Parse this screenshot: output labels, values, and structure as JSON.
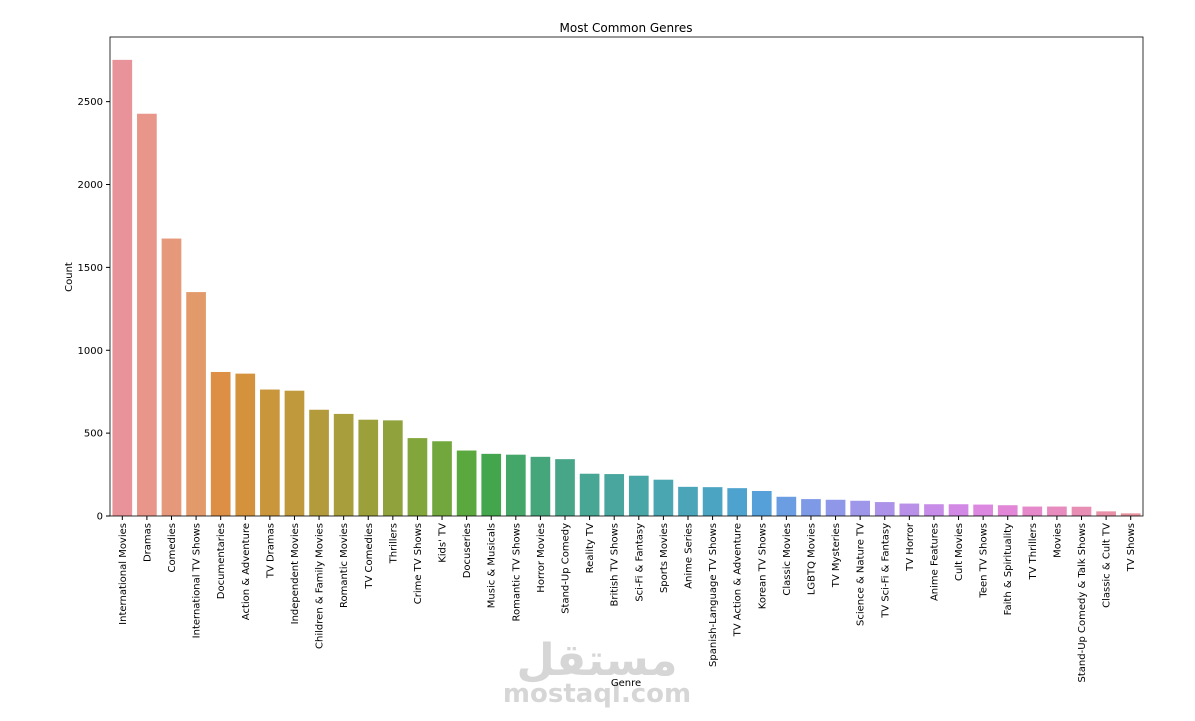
{
  "chart_data": {
    "type": "bar",
    "title": "Most Common Genres",
    "x_label": "Genre",
    "y_label": "Count",
    "categories": [
      "International Movies",
      "Dramas",
      "Comedies",
      "International TV Shows",
      "Documentaries",
      "Action & Adventure",
      "TV Dramas",
      "Independent Movies",
      "Children & Family Movies",
      "Romantic Movies",
      "TV Comedies",
      "Thrillers",
      "Crime TV Shows",
      "Kids' TV",
      "Docuseries",
      "Music & Musicals",
      "Romantic TV Shows",
      "Horror Movies",
      "Stand-Up Comedy",
      "Reality TV",
      "British TV Shows",
      "Sci-Fi & Fantasy",
      "Sports Movies",
      "Anime Series",
      "Spanish-Language TV Shows",
      "TV Action & Adventure",
      "Korean TV Shows",
      "Classic Movies",
      "LGBTQ Movies",
      "TV Mysteries",
      "Science & Nature TV",
      "TV Sci-Fi & Fantasy",
      "TV Horror",
      "Anime Features",
      "Cult Movies",
      "Teen TV Shows",
      "Faith & Spirituality",
      "TV Thrillers",
      "Movies",
      "Stand-Up Comedy & Talk Shows",
      "Classic & Cult TV",
      "TV Shows"
    ],
    "values": [
      2752,
      2427,
      1674,
      1351,
      869,
      859,
      763,
      756,
      641,
      616,
      581,
      577,
      470,
      451,
      395,
      375,
      370,
      357,
      343,
      255,
      253,
      243,
      219,
      176,
      174,
      168,
      151,
      116,
      102,
      98,
      92,
      84,
      75,
      71,
      71,
      69,
      65,
      57,
      57,
      56,
      28,
      16
    ],
    "colors": [
      "#e8929a",
      "#e8958a",
      "#e6987b",
      "#e39a6a",
      "#dd8f45",
      "#d4923d",
      "#c9963c",
      "#bf993b",
      "#b39b3b",
      "#a89e3b",
      "#9ca03b",
      "#90a23c",
      "#82a53c",
      "#72a73d",
      "#5aa83e",
      "#43a64d",
      "#45a66a",
      "#46a67b",
      "#47a688",
      "#48a694",
      "#48a69e",
      "#49a6a7",
      "#4aa6b0",
      "#4ba5b9",
      "#4ca4c3",
      "#4ea2ce",
      "#55a0d8",
      "#6a9de2",
      "#7e9ae6",
      "#8f98e8",
      "#9e96e9",
      "#ac93e9",
      "#b990e8",
      "#c68ce7",
      "#d189e5",
      "#dc87e0",
      "#e286d7",
      "#e589cb",
      "#e88bbf",
      "#e88db3",
      "#e890a7",
      "#e8929e"
    ],
    "ylim": [
      0,
      2890
    ],
    "yticks": [
      0,
      500,
      1000,
      1500,
      2000,
      2500
    ],
    "grid": false
  },
  "watermark": {
    "arabic": "مستقل",
    "latin": "mostaql.com"
  }
}
